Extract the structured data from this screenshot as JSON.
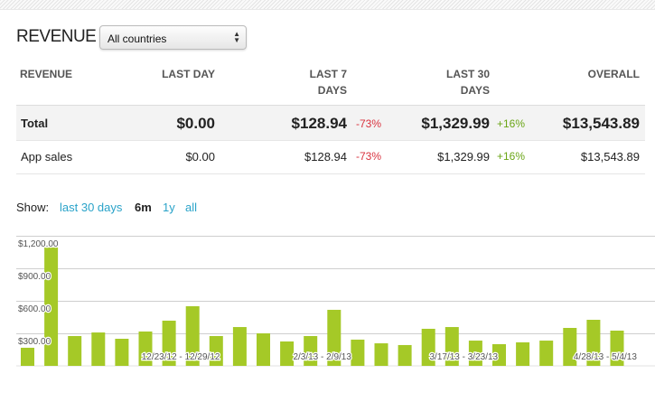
{
  "header": {
    "title": "REVENUE",
    "country_select": "All countries"
  },
  "table": {
    "columns": [
      "REVENUE",
      "LAST DAY",
      "LAST 7",
      "DAYS",
      "LAST 30",
      "DAYS",
      "OVERALL"
    ],
    "rows": [
      {
        "label": "Total",
        "last_day": "$0.00",
        "last_7": "$128.94",
        "last_7_change": "-73%",
        "last_30": "$1,329.99",
        "last_30_change": "+16%",
        "overall": "$13,543.89"
      },
      {
        "label": "App sales",
        "last_day": "$0.00",
        "last_7": "$128.94",
        "last_7_change": "-73%",
        "last_30": "$1,329.99",
        "last_30_change": "+16%",
        "overall": "$13,543.89"
      }
    ]
  },
  "show": {
    "label": "Show:",
    "options": [
      "last 30 days",
      "6m",
      "1y",
      "all"
    ],
    "selected": "6m"
  },
  "colors": {
    "bar": "#a5c927",
    "negative": "#d9333f",
    "positive": "#6aa516",
    "link": "#2aa3c9"
  },
  "chart_data": {
    "type": "bar",
    "ylim": [
      0,
      1200
    ],
    "yticks": [
      "$300.00",
      "$600.00",
      "$900.00",
      "$1,200.00"
    ],
    "ytick_values": [
      300,
      600,
      900,
      1200
    ],
    "grid": true,
    "x_labels": [
      {
        "index": 6,
        "text": "12/23/12 - 12/29/12"
      },
      {
        "index": 12,
        "text": "2/3/13 - 2/9/13"
      },
      {
        "index": 18,
        "text": "3/17/13 - 3/23/13"
      },
      {
        "index": 24,
        "text": "4/28/13 - 5/4/13"
      }
    ],
    "values": [
      167,
      1092,
      275,
      308,
      250,
      317,
      417,
      550,
      275,
      358,
      300,
      225,
      275,
      517,
      242,
      208,
      192,
      342,
      358,
      233,
      200,
      217,
      233,
      350,
      425,
      325
    ]
  }
}
